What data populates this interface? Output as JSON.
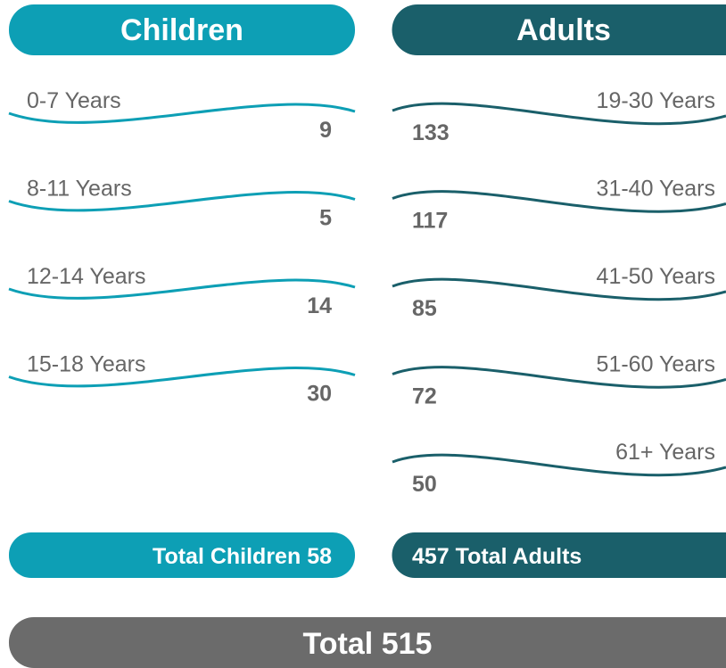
{
  "children": {
    "header": "Children",
    "rows": [
      {
        "label": "0-7 Years",
        "value": 9
      },
      {
        "label": "8-11 Years",
        "value": 5
      },
      {
        "label": "12-14 Years",
        "value": 14
      },
      {
        "label": "15-18 Years",
        "value": 30
      }
    ],
    "total_label": "Total Children",
    "total": 58
  },
  "adults": {
    "header": "Adults",
    "rows": [
      {
        "label": "19-30 Years",
        "value": 133
      },
      {
        "label": "31-40 Years",
        "value": 117
      },
      {
        "label": "41-50 Years",
        "value": 85
      },
      {
        "label": "51-60 Years",
        "value": 72
      },
      {
        "label": "61+ Years",
        "value": 50
      }
    ],
    "total_label": "Total Adults",
    "total": 457
  },
  "grand_total_label": "Total",
  "grand_total": 515
}
